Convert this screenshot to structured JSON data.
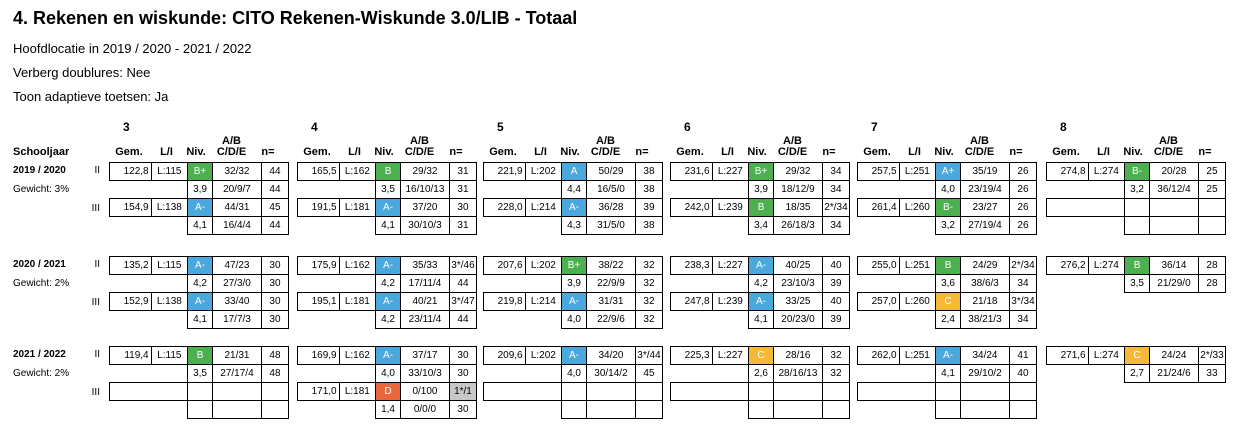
{
  "title": "4. Rekenen en wiskunde: CITO Rekenen-Wiskunde 3.0/LIB - Totaal",
  "info": [
    "Hoofdlocatie in 2019 / 2020 - 2021 / 2022",
    "Verberg doublures: Nee",
    "Toon adaptieve toetsen: Ja"
  ],
  "schooljaar_label": "Schooljaar",
  "column_headers": {
    "gem": "Gem.",
    "li": "L/I",
    "niv": "Niv.",
    "ab1": "A/B",
    "ab2": "C/D/E",
    "n": "n="
  },
  "level_colors": {
    "green": "#4caf50",
    "blue": "#4aa8dc",
    "orange": "#f5b93a",
    "red": "#e8683c",
    "grey": "#c8c8c8"
  },
  "grades": [
    "3",
    "4",
    "5",
    "6",
    "7",
    "8"
  ],
  "years": [
    {
      "label": "2019 / 2020",
      "weight": "Gewicht: 3%",
      "blocks": [
        {
          "II": {
            "gem": "122,8",
            "li": "L:115",
            "niv": "B+",
            "c": "g",
            "ab": "32/32",
            "n": "44",
            "sc": "3,9",
            "cde": "20/9/7",
            "n2": "44"
          },
          "III": {
            "gem": "154,9",
            "li": "L:138",
            "niv": "A-",
            "c": "b",
            "ab": "44/31",
            "n": "45",
            "sc": "4,1",
            "cde": "16/4/4",
            "n2": "44"
          }
        },
        {
          "II": {
            "gem": "165,5",
            "li": "L:162",
            "niv": "B",
            "c": "g",
            "ab": "29/32",
            "n": "31",
            "sc": "3,5",
            "cde": "16/10/13",
            "n2": "31"
          },
          "III": {
            "gem": "191,5",
            "li": "L:181",
            "niv": "A-",
            "c": "b",
            "ab": "37/20",
            "n": "30",
            "sc": "4,1",
            "cde": "30/10/3",
            "n2": "31"
          }
        },
        {
          "II": {
            "gem": "221,9",
            "li": "L:202",
            "niv": "A",
            "c": "b",
            "ab": "50/29",
            "n": "38",
            "sc": "4,4",
            "cde": "16/5/0",
            "n2": "38"
          },
          "III": {
            "gem": "228,0",
            "li": "L:214",
            "niv": "A-",
            "c": "b",
            "ab": "36/28",
            "n": "39",
            "sc": "4,3",
            "cde": "31/5/0",
            "n2": "38"
          }
        },
        {
          "II": {
            "gem": "231,6",
            "li": "L:227",
            "niv": "B+",
            "c": "g",
            "ab": "29/32",
            "n": "34",
            "sc": "3,9",
            "cde": "18/12/9",
            "n2": "34"
          },
          "III": {
            "gem": "242,0",
            "li": "L:239",
            "niv": "B",
            "c": "g",
            "ab": "18/35",
            "n": "2*/34",
            "sc": "3,4",
            "cde": "26/18/3",
            "n2": "34"
          }
        },
        {
          "II": {
            "gem": "257,5",
            "li": "L:251",
            "niv": "A+",
            "c": "b",
            "ab": "35/19",
            "n": "26",
            "sc": "4,0",
            "cde": "23/19/4",
            "n2": "26"
          },
          "III": {
            "gem": "261,4",
            "li": "L:260",
            "niv": "B-",
            "c": "g",
            "ab": "23/27",
            "n": "26",
            "sc": "3,2",
            "cde": "27/19/4",
            "n2": "26"
          }
        },
        {
          "II": {
            "gem": "274,8",
            "li": "L:274",
            "niv": "B-",
            "c": "g",
            "ab": "20/28",
            "n": "25",
            "sc": "3,2",
            "cde": "36/12/4",
            "n2": "25"
          },
          "III": null
        }
      ]
    },
    {
      "label": "2020 / 2021",
      "weight": "Gewicht: 2%",
      "blocks": [
        {
          "II": {
            "gem": "135,2",
            "li": "L:115",
            "niv": "A-",
            "c": "b",
            "ab": "47/23",
            "n": "30",
            "sc": "4,2",
            "cde": "27/3/0",
            "n2": "30"
          },
          "III": {
            "gem": "152,9",
            "li": "L:138",
            "niv": "A-",
            "c": "b",
            "ab": "33/40",
            "n": "30",
            "sc": "4,1",
            "cde": "17/7/3",
            "n2": "30"
          }
        },
        {
          "II": {
            "gem": "175,9",
            "li": "L:162",
            "niv": "A-",
            "c": "b",
            "ab": "35/33",
            "n": "3*/46",
            "sc": "4,2",
            "cde": "17/11/4",
            "n2": "44"
          },
          "III": {
            "gem": "195,1",
            "li": "L:181",
            "niv": "A-",
            "c": "b",
            "ab": "40/21",
            "n": "3*/47",
            "sc": "4,2",
            "cde": "23/11/4",
            "n2": "44"
          }
        },
        {
          "II": {
            "gem": "207,6",
            "li": "L:202",
            "niv": "B+",
            "c": "g",
            "ab": "38/22",
            "n": "32",
            "sc": "3,9",
            "cde": "22/9/9",
            "n2": "32"
          },
          "III": {
            "gem": "219,8",
            "li": "L:214",
            "niv": "A-",
            "c": "b",
            "ab": "31/31",
            "n": "32",
            "sc": "4,0",
            "cde": "22/9/6",
            "n2": "32"
          }
        },
        {
          "II": {
            "gem": "238,3",
            "li": "L:227",
            "niv": "A-",
            "c": "b",
            "ab": "40/25",
            "n": "40",
            "sc": "4,2",
            "cde": "23/10/3",
            "n2": "39"
          },
          "III": {
            "gem": "247,8",
            "li": "L:239",
            "niv": "A-",
            "c": "b",
            "ab": "33/25",
            "n": "40",
            "sc": "4,1",
            "cde": "20/23/0",
            "n2": "39"
          }
        },
        {
          "II": {
            "gem": "255,0",
            "li": "L:251",
            "niv": "B",
            "c": "g",
            "ab": "24/29",
            "n": "2*/34",
            "sc": "3,6",
            "cde": "38/6/3",
            "n2": "34"
          },
          "III": {
            "gem": "257,0",
            "li": "L:260",
            "niv": "C",
            "c": "o",
            "ab": "21/18",
            "n": "3*/34",
            "sc": "2,4",
            "cde": "38/21/3",
            "n2": "34"
          }
        },
        {
          "II": {
            "gem": "276,2",
            "li": "L:274",
            "niv": "B",
            "c": "g",
            "ab": "36/14",
            "n": "28",
            "sc": "3,5",
            "cde": "21/29/0",
            "n2": "28"
          },
          "III": null,
          "noIII": true
        }
      ]
    },
    {
      "label": "2021 / 2022",
      "weight": "Gewicht: 2%",
      "blocks": [
        {
          "II": {
            "gem": "119,4",
            "li": "L:115",
            "niv": "B",
            "c": "g",
            "ab": "21/31",
            "n": "48",
            "sc": "3,5",
            "cde": "27/17/4",
            "n2": "48"
          },
          "III": null
        },
        {
          "II": {
            "gem": "169,9",
            "li": "L:162",
            "niv": "A-",
            "c": "b",
            "ab": "37/17",
            "n": "30",
            "sc": "4,0",
            "cde": "33/10/3",
            "n2": "30"
          },
          "III": {
            "gem": "171,0",
            "li": "L:181",
            "niv": "D",
            "c": "red",
            "ab": "0/100",
            "n": "1*/1",
            "ngrey": true,
            "sc": "1,4",
            "cde": "0/0/0",
            "n2": "30"
          }
        },
        {
          "II": {
            "gem": "209,6",
            "li": "L:202",
            "niv": "A-",
            "c": "b",
            "ab": "34/20",
            "n": "3*/44",
            "sc": "4,0",
            "cde": "30/14/2",
            "n2": "45"
          },
          "III": null
        },
        {
          "II": {
            "gem": "225,3",
            "li": "L:227",
            "niv": "C",
            "c": "o",
            "ab": "28/16",
            "n": "32",
            "sc": "2,6",
            "cde": "28/16/13",
            "n2": "32"
          },
          "III": null
        },
        {
          "II": {
            "gem": "262,0",
            "li": "L:251",
            "niv": "A-",
            "c": "b",
            "ab": "34/24",
            "n": "41",
            "sc": "4,1",
            "cde": "29/10/2",
            "n2": "40"
          },
          "III": null
        },
        {
          "II": {
            "gem": "271,6",
            "li": "L:274",
            "niv": "C",
            "c": "o",
            "ab": "24/24",
            "n": "2*/33",
            "sc": "2,7",
            "cde": "21/24/6",
            "n2": "33"
          },
          "III": null,
          "noIII": true
        }
      ]
    }
  ]
}
